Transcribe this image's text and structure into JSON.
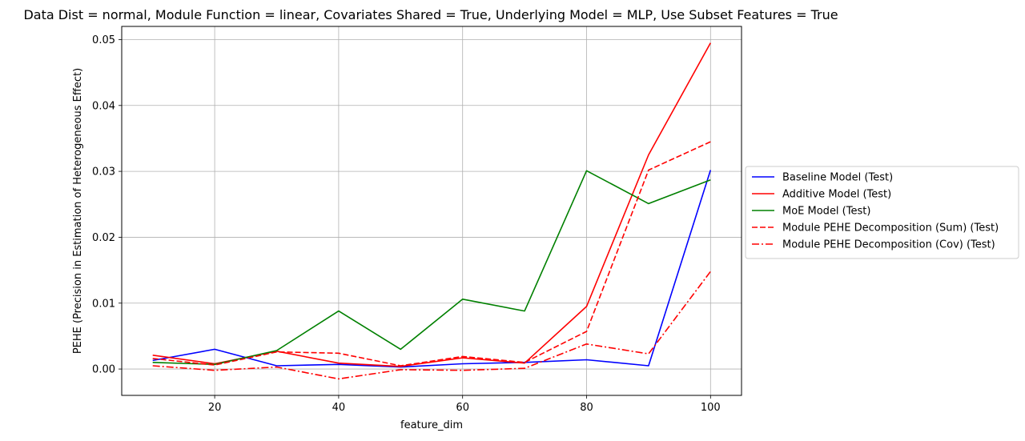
{
  "chart_data": {
    "type": "line",
    "title": "Data Dist = normal, Module Function = linear, Covariates Shared = True, Underlying Model = MLP, Use Subset Features = True",
    "xlabel": "feature_dim",
    "ylabel": "PEHE (Precision in Estimation of Heterogeneous Effect)",
    "x": [
      10,
      20,
      30,
      40,
      50,
      60,
      70,
      80,
      90,
      100
    ],
    "xlim": [
      5,
      105
    ],
    "ylim": [
      -0.004,
      0.052
    ],
    "xticks": [
      20,
      40,
      60,
      80,
      100
    ],
    "yticks": [
      0.0,
      0.01,
      0.02,
      0.03,
      0.04,
      0.05
    ],
    "ytick_labels": [
      "0.00",
      "0.01",
      "0.02",
      "0.03",
      "0.04",
      "0.05"
    ],
    "grid": true,
    "legend_position": "outside-right",
    "series": [
      {
        "name": "Baseline Model (Test)",
        "color": "#0000ff",
        "linestyle": "solid",
        "values": [
          0.0013,
          0.003,
          0.0005,
          0.0007,
          0.0003,
          0.0008,
          0.001,
          0.0014,
          0.0005,
          0.0302
        ]
      },
      {
        "name": "Additive Model (Test)",
        "color": "#ff0000",
        "linestyle": "solid",
        "values": [
          0.0021,
          0.0008,
          0.0027,
          0.0009,
          0.0004,
          0.0017,
          0.0009,
          0.0095,
          0.0325,
          0.0495
        ]
      },
      {
        "name": "MoE Model (Test)",
        "color": "#008000",
        "linestyle": "solid",
        "values": [
          0.001,
          0.0007,
          0.0028,
          0.0088,
          0.003,
          0.0106,
          0.0088,
          0.0301,
          0.0251,
          0.0287
        ]
      },
      {
        "name": "Module PEHE Decomposition (Sum) (Test)",
        "color": "#ff0000",
        "linestyle": "dashed",
        "values": [
          0.0016,
          0.0006,
          0.0026,
          0.0024,
          0.0005,
          0.0019,
          0.001,
          0.0057,
          0.0302,
          0.0345
        ]
      },
      {
        "name": "Module PEHE Decomposition (Cov) (Test)",
        "color": "#ff0000",
        "linestyle": "dashdot",
        "values": [
          0.0005,
          -0.0002,
          0.0003,
          -0.0015,
          -0.0001,
          -0.0002,
          0.0001,
          0.0038,
          0.0023,
          0.0148
        ]
      }
    ]
  }
}
